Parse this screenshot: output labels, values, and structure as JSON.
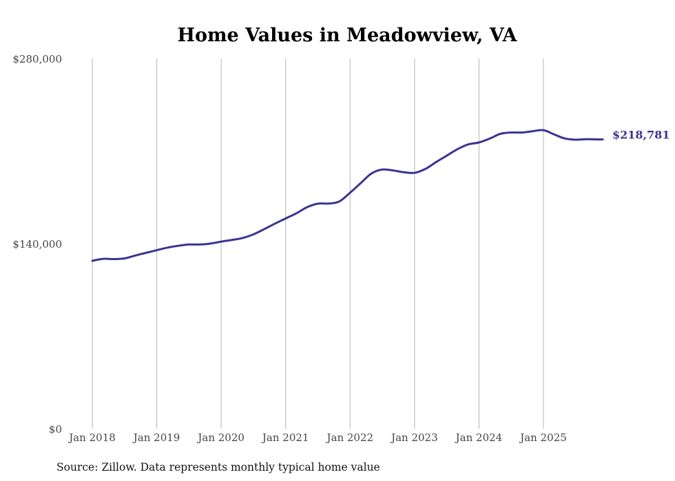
{
  "chart_data": {
    "type": "line",
    "title": "Home Values in Meadowview, VA",
    "source": "Source: Zillow. Data represents monthly typical home value",
    "xlabel": "",
    "ylabel": "",
    "ylim": [
      0,
      280000
    ],
    "y_ticks": [
      {
        "value": 0,
        "label": "$0"
      },
      {
        "value": 140000,
        "label": "$140,000"
      },
      {
        "value": 280000,
        "label": "$280,000"
      }
    ],
    "x_ticks": [
      {
        "value": 2018,
        "label": "Jan 2018"
      },
      {
        "value": 2019,
        "label": "Jan 2019"
      },
      {
        "value": 2020,
        "label": "Jan 2020"
      },
      {
        "value": 2021,
        "label": "Jan 2021"
      },
      {
        "value": 2022,
        "label": "Jan 2022"
      },
      {
        "value": 2023,
        "label": "Jan 2023"
      },
      {
        "value": 2024,
        "label": "Jan 2024"
      },
      {
        "value": 2025,
        "label": "Jan 2025"
      }
    ],
    "xlim": [
      2017.9,
      2026.4
    ],
    "grid": "vertical",
    "series": [
      {
        "name": "Typical home value",
        "color": "#3b3391",
        "end_label": "$218,781",
        "x": [
          2018.0,
          2018.17,
          2018.33,
          2018.5,
          2018.67,
          2018.83,
          2019.0,
          2019.17,
          2019.33,
          2019.5,
          2019.67,
          2019.83,
          2020.0,
          2020.17,
          2020.33,
          2020.5,
          2020.67,
          2020.83,
          2021.0,
          2021.17,
          2021.33,
          2021.5,
          2021.67,
          2021.83,
          2022.0,
          2022.17,
          2022.33,
          2022.5,
          2022.67,
          2022.83,
          2023.0,
          2023.17,
          2023.33,
          2023.5,
          2023.67,
          2023.83,
          2024.0,
          2024.17,
          2024.33,
          2024.5,
          2024.67,
          2024.83,
          2025.0,
          2025.17,
          2025.33,
          2025.5,
          2025.67,
          2025.83,
          2025.92
        ],
        "values": [
          127000,
          128500,
          128300,
          128800,
          131000,
          133000,
          135000,
          137000,
          138300,
          139300,
          139300,
          140000,
          141500,
          142800,
          144200,
          147000,
          151000,
          155000,
          159000,
          163000,
          167500,
          170200,
          170300,
          171800,
          178500,
          186000,
          193000,
          196000,
          195300,
          194000,
          193500,
          196500,
          201500,
          206500,
          211500,
          215000,
          216500,
          219500,
          223000,
          224000,
          224000,
          225000,
          225800,
          222500,
          219500,
          218600,
          219000,
          218800,
          218781
        ]
      }
    ]
  }
}
